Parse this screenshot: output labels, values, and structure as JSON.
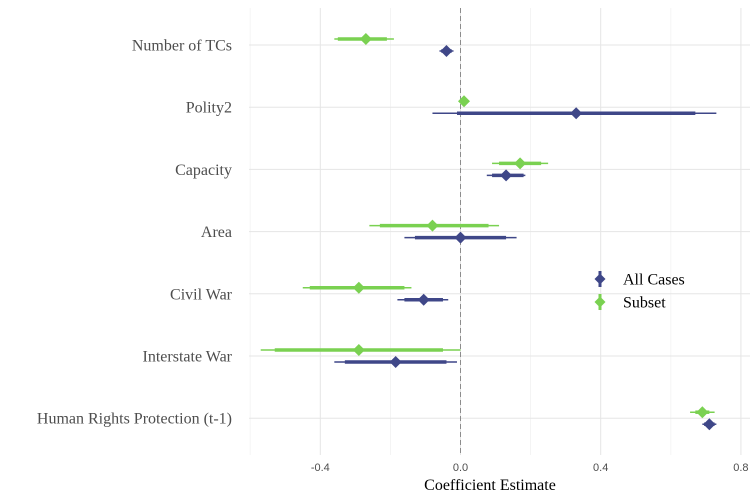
{
  "chart_data": {
    "type": "coefficient-plot",
    "xlabel": "Coefficient Estimate",
    "xlim": [
      -0.6,
      0.8
    ],
    "x_ticks": [
      -0.4,
      0.0,
      0.4,
      0.8
    ],
    "x_tick_labels": [
      "-0.4",
      "0.0",
      "0.4",
      "0.8"
    ],
    "reference_line": 0,
    "grid": true,
    "legend_position": "right",
    "categories": [
      "Number of TCs",
      "Polity2",
      "Capacity",
      "Area",
      "Civil War",
      "Interstate War",
      "Human Rights Protection (t-1)"
    ],
    "series": [
      {
        "name": "All Cases",
        "color": "#3f4788",
        "points": [
          {
            "estimate": -0.04,
            "inner": [
              -0.055,
              -0.025
            ],
            "outer": [
              -0.06,
              -0.02
            ]
          },
          {
            "estimate": 0.33,
            "inner": [
              -0.01,
              0.67
            ],
            "outer": [
              -0.08,
              0.73
            ]
          },
          {
            "estimate": 0.13,
            "inner": [
              0.09,
              0.18
            ],
            "outer": [
              0.075,
              0.185
            ]
          },
          {
            "estimate": 0.0,
            "inner": [
              -0.13,
              0.13
            ],
            "outer": [
              -0.16,
              0.16
            ]
          },
          {
            "estimate": -0.105,
            "inner": [
              -0.16,
              -0.05
            ],
            "outer": [
              -0.18,
              -0.035
            ]
          },
          {
            "estimate": -0.185,
            "inner": [
              -0.33,
              -0.04
            ],
            "outer": [
              -0.36,
              -0.01
            ]
          },
          {
            "estimate": 0.71,
            "inner": [
              0.695,
              0.725
            ],
            "outer": [
              0.69,
              0.73
            ]
          }
        ]
      },
      {
        "name": "Subset",
        "color": "#7ad151",
        "points": [
          {
            "estimate": -0.27,
            "inner": [
              -0.35,
              -0.21
            ],
            "outer": [
              -0.36,
              -0.19
            ]
          },
          {
            "estimate": 0.01,
            "inner": [
              0.005,
              0.015
            ],
            "outer": [
              0.0,
              0.02
            ]
          },
          {
            "estimate": 0.17,
            "inner": [
              0.11,
              0.23
            ],
            "outer": [
              0.09,
              0.25
            ]
          },
          {
            "estimate": -0.08,
            "inner": [
              -0.23,
              0.08
            ],
            "outer": [
              -0.26,
              0.11
            ]
          },
          {
            "estimate": -0.29,
            "inner": [
              -0.43,
              -0.16
            ],
            "outer": [
              -0.45,
              -0.14
            ]
          },
          {
            "estimate": -0.29,
            "inner": [
              -0.53,
              -0.05
            ],
            "outer": [
              -0.57,
              0.0
            ]
          },
          {
            "estimate": 0.69,
            "inner": [
              0.67,
              0.71
            ],
            "outer": [
              0.655,
              0.725
            ]
          }
        ]
      }
    ]
  }
}
